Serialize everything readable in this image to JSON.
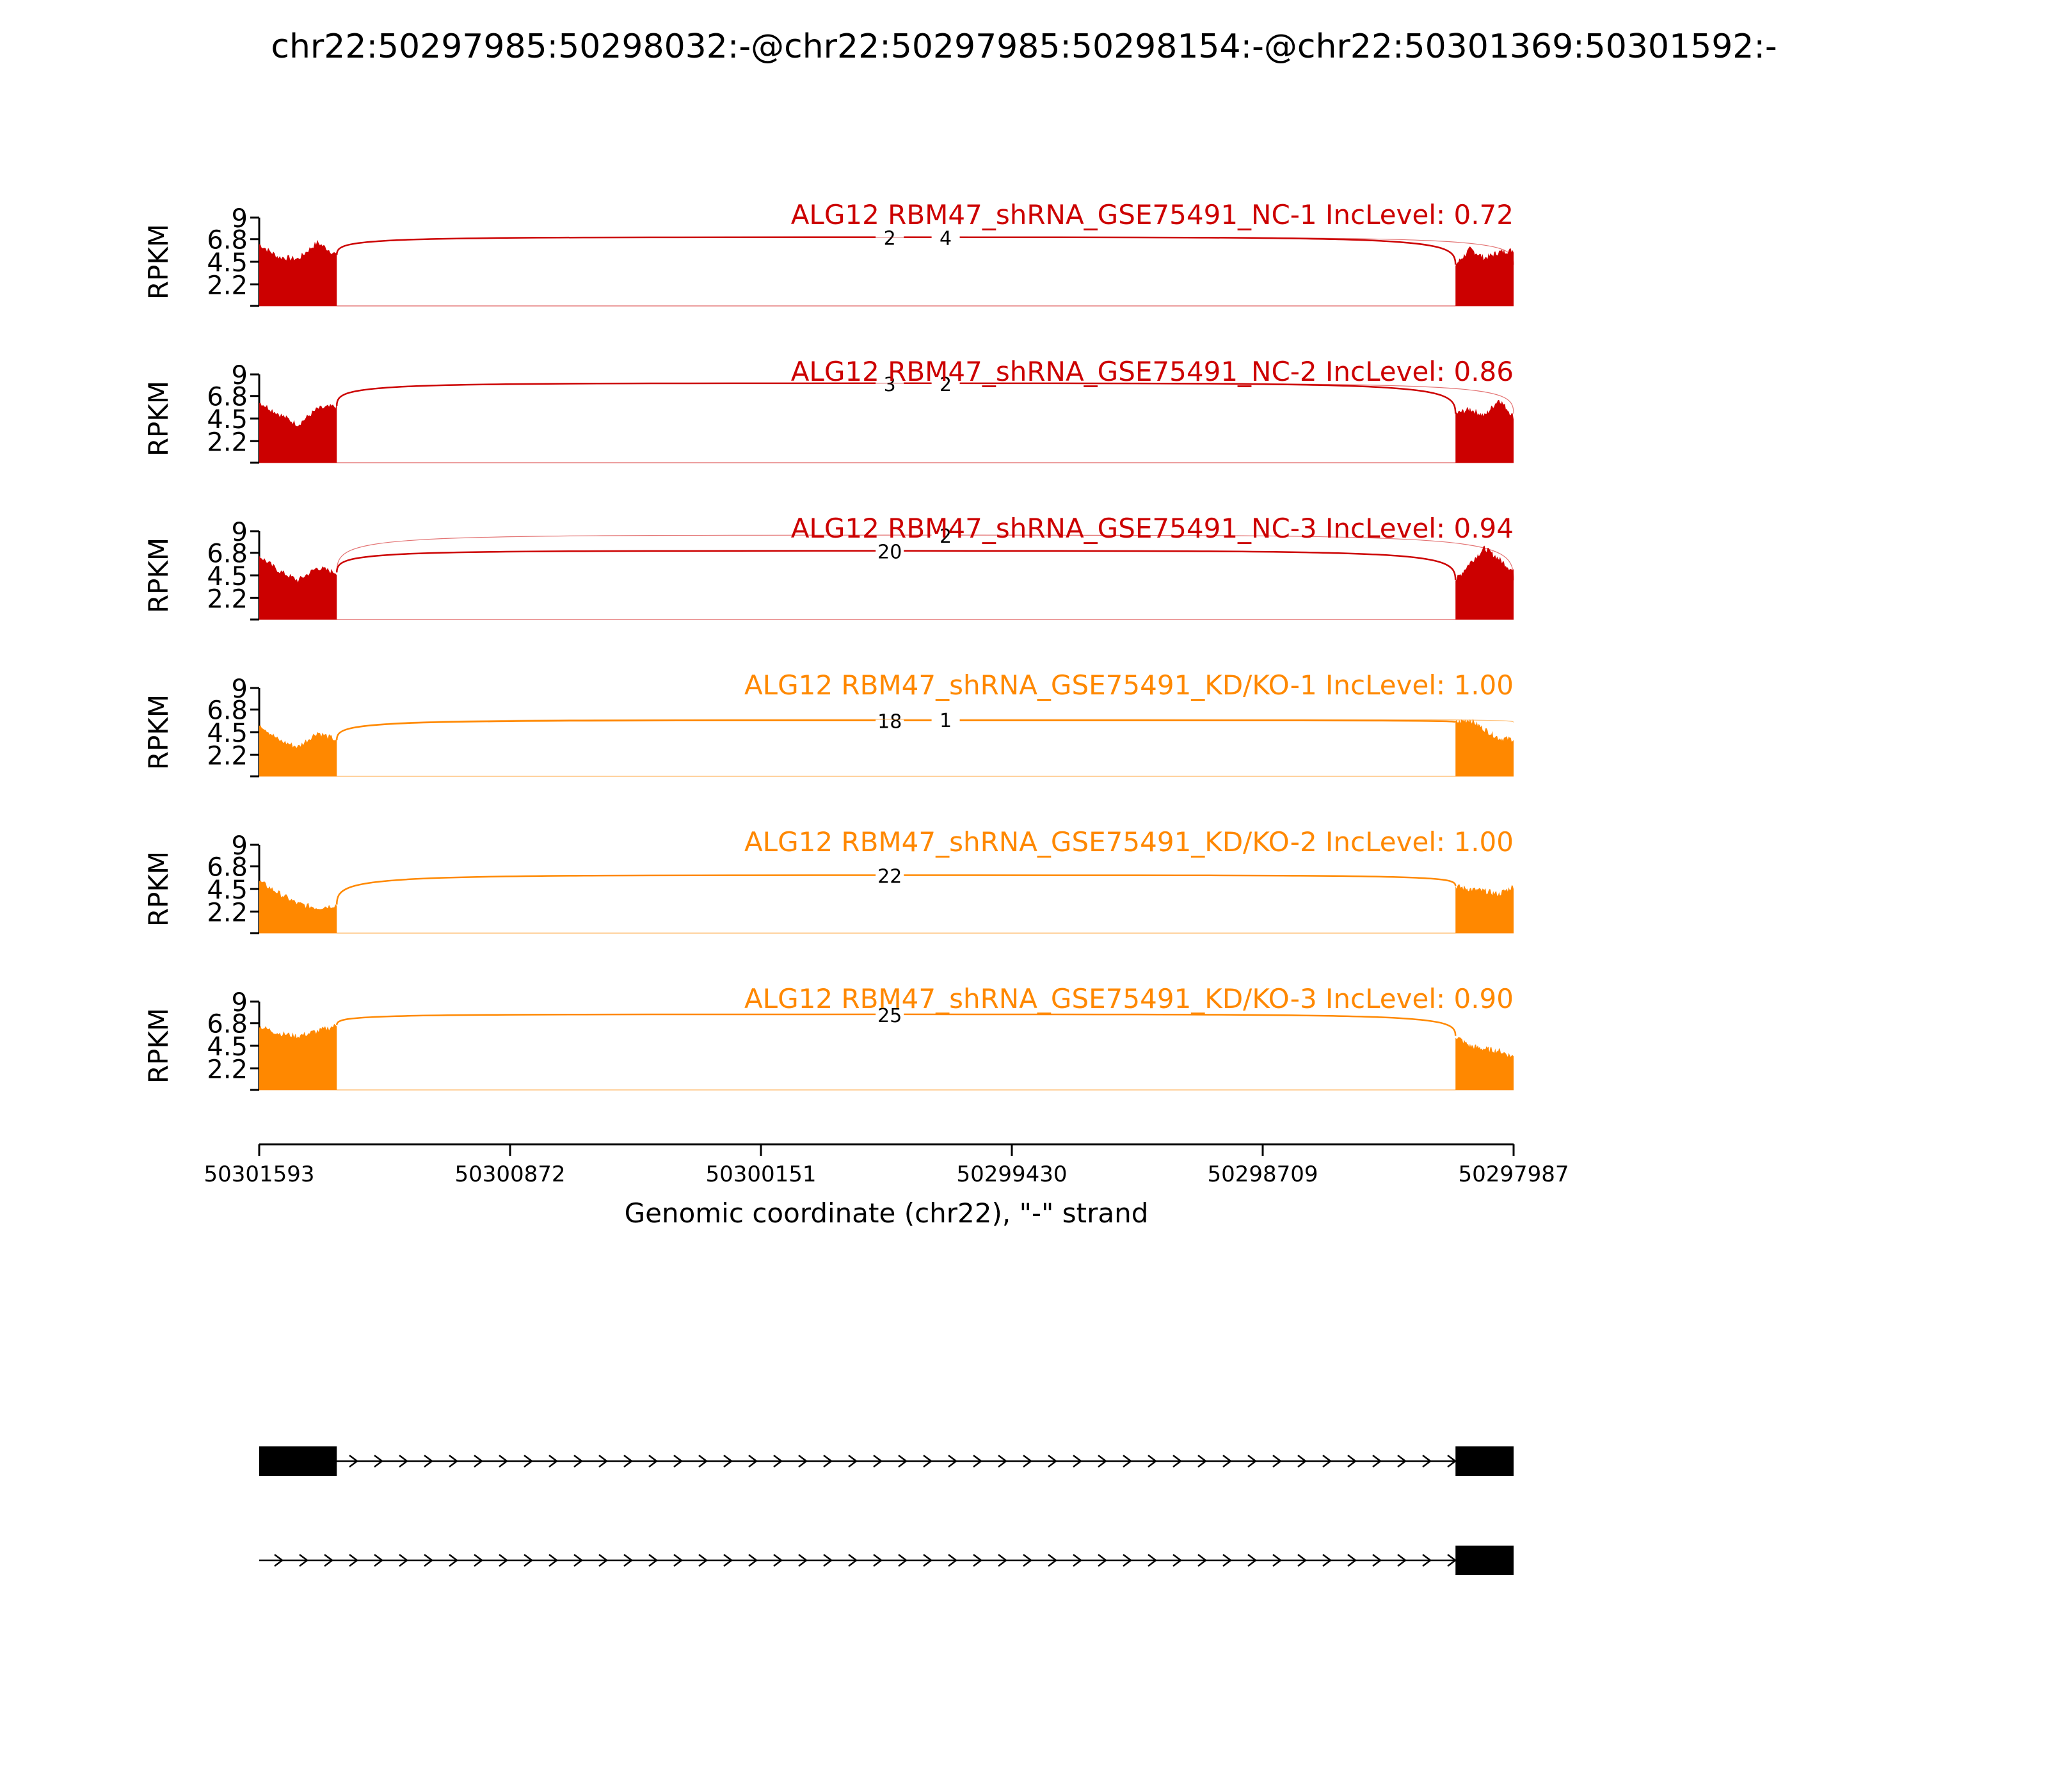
{
  "chart_data": {
    "type": "area",
    "title": "chr22:50297985:50298032:-@chr22:50297985:50298154:-@chr22:50301369:50301592:-",
    "xlabel": "Genomic coordinate (chr22), \"-\" strand",
    "ylabel": "RPKM",
    "x_reversed": true,
    "xlim": [
      50301593,
      50297987
    ],
    "xticks": [
      "50301593",
      "50300872",
      "50300151",
      "50299430",
      "50298709",
      "50297987"
    ],
    "ylim": [
      0,
      9
    ],
    "yticks": [
      "9",
      "6.8",
      "4.5",
      "2.2"
    ],
    "series": [
      {
        "name": "ALG12 RBM47_shRNA_GSE75491_NC-1 IncLevel: 0.72",
        "color": "#cc0000",
        "exon_left": {
          "start": 50301593,
          "end": 50301370,
          "level": [
            6.3,
            5.0,
            4.8,
            6.5,
            5.2
          ]
        },
        "exon_right": {
          "start": 50298154,
          "end": 50297987,
          "level": [
            4.2,
            5.8,
            4.9,
            5.5,
            5.7
          ]
        },
        "junctions": [
          {
            "label": "2",
            "peak": 7.0,
            "from": 50301370,
            "to": 50298154
          },
          {
            "label": "4",
            "peak": 7.0,
            "from": 50301370,
            "to": 50297987
          }
        ]
      },
      {
        "name": "ALG12 RBM47_shRNA_GSE75491_NC-2 IncLevel: 0.86",
        "color": "#cc0000",
        "exon_left": {
          "start": 50301593,
          "end": 50301370,
          "level": [
            6.2,
            5.0,
            3.9,
            5.5,
            5.8
          ]
        },
        "exon_right": {
          "start": 50298154,
          "end": 50297987,
          "level": [
            5.0,
            5.5,
            4.8,
            6.5,
            4.7
          ]
        },
        "junctions": [
          {
            "label": "3",
            "peak": 8.1,
            "from": 50301370,
            "to": 50298154
          },
          {
            "label": "2",
            "peak": 8.1,
            "from": 50301370,
            "to": 50297987
          }
        ]
      },
      {
        "name": "ALG12 RBM47_shRNA_GSE75491_NC-3 IncLevel: 0.94",
        "color": "#cc0000",
        "exon_left": {
          "start": 50301593,
          "end": 50301370,
          "level": [
            6.5,
            5.0,
            4.0,
            5.3,
            4.8
          ]
        },
        "exon_right": {
          "start": 50298154,
          "end": 50297987,
          "level": [
            4.0,
            5.8,
            7.3,
            6.2,
            4.9
          ]
        },
        "junctions": [
          {
            "label": "20",
            "peak": 7.0,
            "from": 50301370,
            "to": 50298154
          },
          {
            "label": "2",
            "peak": 8.6,
            "from": 50301370,
            "to": 50297987
          }
        ]
      },
      {
        "name": "ALG12 RBM47_shRNA_GSE75491_KD/KO-1 IncLevel: 1.00",
        "color": "#ff8800",
        "exon_left": {
          "start": 50301593,
          "end": 50301370,
          "level": [
            5.4,
            3.7,
            3.0,
            4.5,
            3.7
          ]
        },
        "exon_right": {
          "start": 50298154,
          "end": 50297987,
          "level": [
            5.5,
            5.8,
            4.8,
            3.9,
            3.8
          ]
        },
        "junctions": [
          {
            "label": "18",
            "peak": 5.7,
            "from": 50301370,
            "to": 50298154
          },
          {
            "label": "1",
            "peak": 5.8,
            "from": 50301370,
            "to": 50297987
          }
        ]
      },
      {
        "name": "ALG12 RBM47_shRNA_GSE75491_KD/KO-2 IncLevel: 1.00",
        "color": "#ff8800",
        "exon_left": {
          "start": 50301593,
          "end": 50301370,
          "level": [
            5.3,
            4.1,
            3.0,
            2.6,
            2.9
          ]
        },
        "exon_right": {
          "start": 50298154,
          "end": 50297987,
          "level": [
            4.8,
            4.5,
            4.3,
            4.0,
            4.8
          ]
        },
        "junctions": [
          {
            "label": "22",
            "peak": 5.9,
            "from": 50301370,
            "to": 50298154
          }
        ]
      },
      {
        "name": "ALG12 RBM47_shRNA_GSE75491_KD/KO-3 IncLevel: 0.90",
        "color": "#ff8800",
        "exon_left": {
          "start": 50301593,
          "end": 50301370,
          "level": [
            6.5,
            5.8,
            5.5,
            6.0,
            6.6
          ]
        },
        "exon_right": {
          "start": 50298154,
          "end": 50297987,
          "level": [
            5.5,
            4.5,
            4.2,
            4.0,
            3.4
          ]
        },
        "junctions": [
          {
            "label": "25",
            "peak": 7.7,
            "from": 50301370,
            "to": 50298154
          }
        ]
      }
    ],
    "transcripts": [
      {
        "exons": [
          [
            50301593,
            50301370
          ],
          [
            50298154,
            50297987
          ]
        ],
        "strand": "-"
      },
      {
        "exons": [
          [
            50298154,
            50297987
          ]
        ],
        "strand": "-"
      }
    ]
  }
}
